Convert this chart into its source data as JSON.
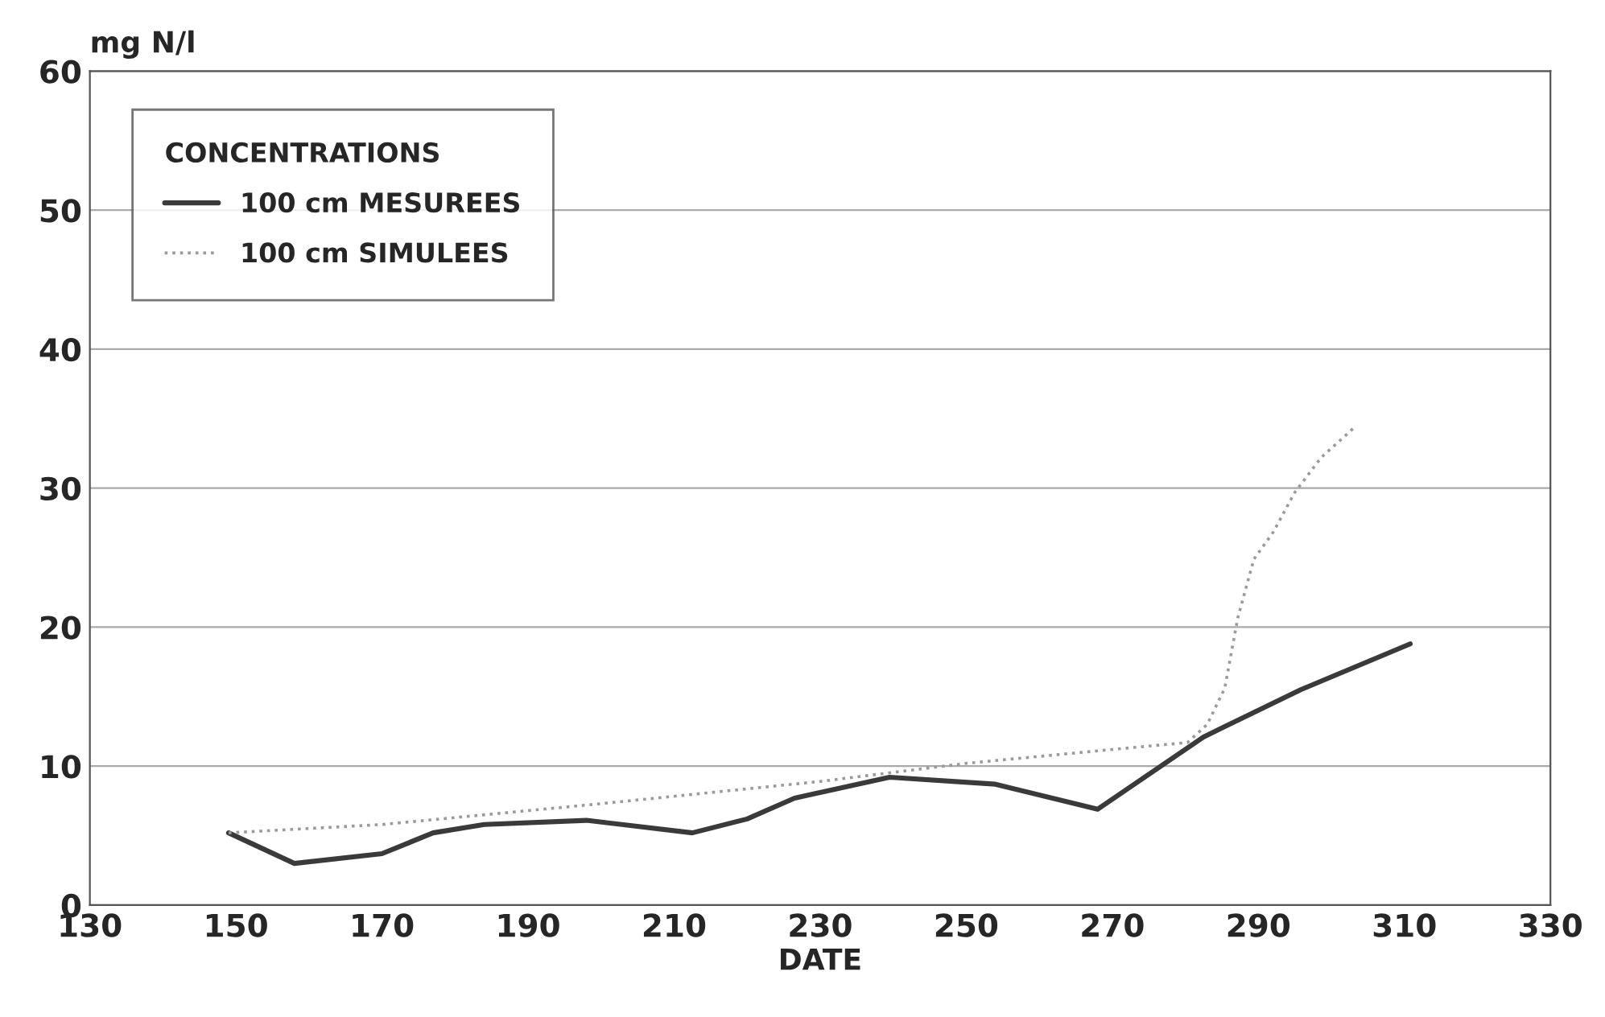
{
  "chart_data": {
    "type": "line",
    "xlabel": "DATE",
    "ylabel": "mg N/l",
    "legend_title": "CONCENTRATIONS",
    "legend": "top left",
    "grid": "y",
    "xlim": [
      130,
      330
    ],
    "xticks": [
      130,
      150,
      170,
      190,
      210,
      230,
      250,
      270,
      290,
      310,
      330
    ],
    "ylim": [
      0,
      60
    ],
    "yticks": [
      0,
      10,
      20,
      30,
      40,
      50,
      60
    ],
    "series": [
      {
        "name": "100 cm MESUREES",
        "color": "#3a3a3a",
        "line_style": "solid",
        "x": [
          149,
          158,
          170,
          177,
          184,
          198,
          212.5,
          220,
          226.5,
          239.5,
          254,
          268,
          282.5,
          295.8,
          310.8
        ],
        "values": [
          5.2,
          3.0,
          3.7,
          5.2,
          5.8,
          6.1,
          5.2,
          6.2,
          7.7,
          9.2,
          8.7,
          6.9,
          12.1,
          15.5,
          18.8
        ]
      },
      {
        "name": "100 cm SIMULEES",
        "color": "#9a9a9a",
        "line_style": "dotted",
        "x": [
          149,
          170,
          200,
          230,
          250,
          270,
          280.3,
          283,
          285.4,
          287.2,
          289.4,
          292,
          295,
          298.6,
          303
        ],
        "values": [
          5.2,
          5.8,
          7.3,
          8.9,
          10.2,
          11.2,
          11.7,
          13.0,
          15.6,
          20.7,
          24.9,
          26.8,
          29.7,
          32.2,
          34.3
        ]
      }
    ]
  }
}
